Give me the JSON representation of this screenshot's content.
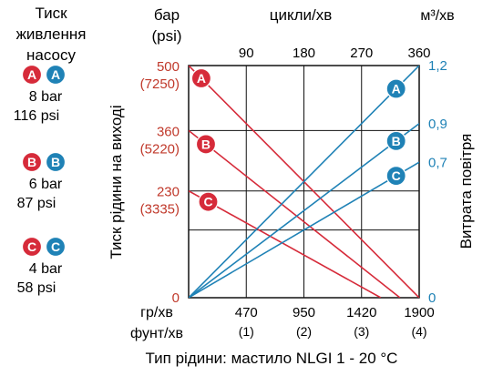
{
  "legend": {
    "title_lines": [
      "Тиск",
      "живлення",
      "насосу"
    ],
    "groups": [
      {
        "key": "A",
        "bar": "8 bar",
        "psi": "116 psi"
      },
      {
        "key": "B",
        "bar": "6 bar",
        "psi": "87 psi"
      },
      {
        "key": "C",
        "bar": "4 bar",
        "psi": "58 psi"
      }
    ]
  },
  "colors": {
    "red": "#d62b3a",
    "blue": "#1f82b6",
    "grid": "#111111",
    "dark_red": "#c0392b"
  },
  "chart_data": {
    "type": "line",
    "left_axis": {
      "unit_lines": [
        "бар",
        "(psi)"
      ],
      "label": "Тиск рідини на виході",
      "ticks": [
        {
          "value": 500,
          "label": "500",
          "sub": "(7250)"
        },
        {
          "value": 360,
          "label": "360",
          "sub": "(5220)"
        },
        {
          "value": 230,
          "label": "230",
          "sub": "(3335)"
        },
        {
          "value": 0,
          "label": "0",
          "sub": ""
        }
      ],
      "range": [
        0,
        500
      ]
    },
    "right_axis": {
      "unit": "м³/хв",
      "label": "Витрата повітря",
      "ticks": [
        {
          "value": 1.2,
          "label": "1,2"
        },
        {
          "value": 0.9,
          "label": "0,9"
        },
        {
          "value": 0.7,
          "label": "0,7"
        },
        {
          "value": 0,
          "label": "0"
        }
      ],
      "range": [
        0,
        1.2
      ]
    },
    "top_axis": {
      "label": "цикли/хв",
      "ticks": [
        "90",
        "180",
        "270",
        "360"
      ],
      "range": [
        0,
        360
      ]
    },
    "bottom_axis": {
      "unit_top": "гр/хв",
      "unit_bottom": "фунт/хв",
      "ticks": [
        {
          "label": "470",
          "sub": "(1)"
        },
        {
          "label": "950",
          "sub": "(2)"
        },
        {
          "label": "1420",
          "sub": "(3)"
        },
        {
          "label": "1900",
          "sub": "(4)"
        }
      ]
    },
    "pressure_series": [
      {
        "name": "A",
        "points": [
          [
            0,
            500
          ],
          [
            360,
            0
          ]
        ]
      },
      {
        "name": "B",
        "points": [
          [
            0,
            360
          ],
          [
            330,
            0
          ]
        ]
      },
      {
        "name": "C",
        "points": [
          [
            0,
            230
          ],
          [
            300,
            0
          ]
        ]
      }
    ],
    "air_series": [
      {
        "name": "A",
        "points": [
          [
            0,
            0
          ],
          [
            360,
            1.2
          ]
        ]
      },
      {
        "name": "B",
        "points": [
          [
            0,
            0
          ],
          [
            360,
            0.9
          ]
        ]
      },
      {
        "name": "C",
        "points": [
          [
            0,
            0
          ],
          [
            360,
            0.7
          ]
        ]
      }
    ],
    "footer": "Тип рідини: мастило NLGI 1 - 20 °C"
  }
}
